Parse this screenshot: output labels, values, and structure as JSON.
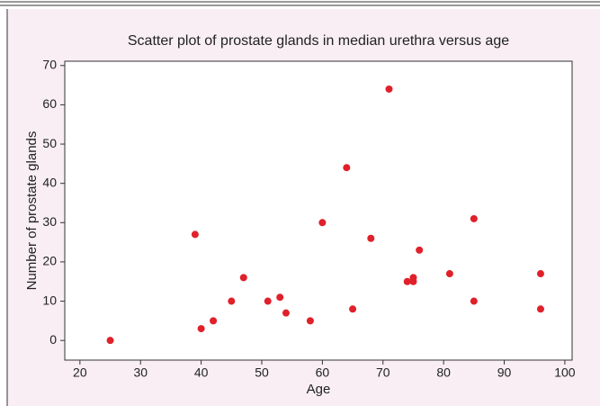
{
  "chart_data": {
    "type": "scatter",
    "title": "Scatter plot of prostate glands in median urethra versus age",
    "x_label": "Age",
    "y_label": "Number of prostate glands",
    "series": [
      {
        "color": "#e0202a",
        "x": [
          25,
          39,
          40,
          42,
          45,
          47,
          51,
          53,
          54,
          58,
          60,
          64,
          65,
          68,
          71,
          74,
          75,
          75,
          76,
          81,
          85,
          85,
          96,
          96
        ],
        "values": [
          0,
          27,
          3,
          5,
          10,
          16,
          10,
          11,
          7,
          5,
          30,
          44,
          8,
          26,
          64,
          15,
          16,
          15,
          23,
          17,
          31,
          10,
          17,
          8
        ]
      }
    ],
    "xlim": [
      17.5,
      101.2
    ],
    "xticks": [
      20,
      30,
      40,
      50,
      60,
      70,
      80,
      90,
      100
    ],
    "ylim": [
      -5,
      71.1
    ],
    "yticks": [
      0,
      10,
      20,
      30,
      40,
      50,
      60,
      70
    ]
  }
}
